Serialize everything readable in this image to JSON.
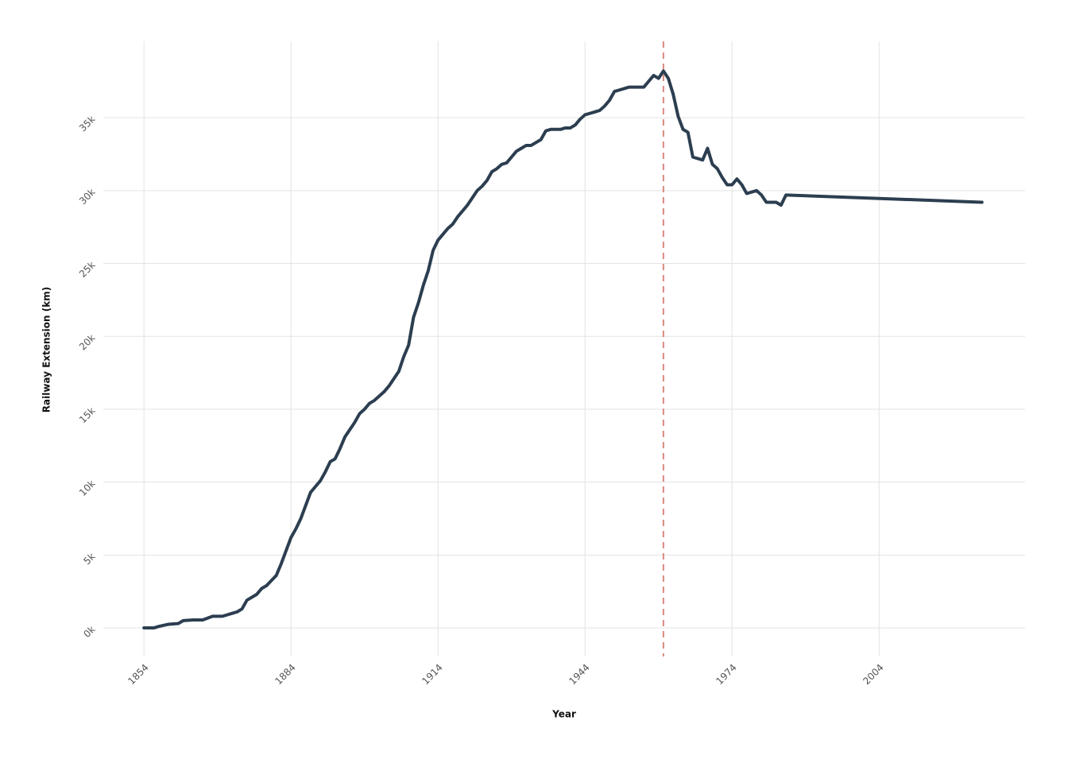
{
  "chart_data": {
    "type": "line",
    "x_label": "Year",
    "y_label": "Railway Extension (km)",
    "x": [
      1854,
      1855,
      1856,
      1857,
      1859,
      1861,
      1862,
      1864,
      1866,
      1868,
      1870,
      1872,
      1873,
      1874,
      1875,
      1877,
      1878,
      1879,
      1881,
      1882,
      1883,
      1884,
      1885,
      1886,
      1887,
      1888,
      1889,
      1890,
      1891,
      1892,
      1893,
      1894,
      1895,
      1896,
      1897,
      1898,
      1899,
      1900,
      1901,
      1902,
      1903,
      1904,
      1905,
      1906,
      1907,
      1908,
      1909,
      1910,
      1911,
      1912,
      1913,
      1914,
      1915,
      1916,
      1917,
      1918,
      1919,
      1920,
      1921,
      1922,
      1923,
      1924,
      1925,
      1926,
      1927,
      1928,
      1929,
      1930,
      1931,
      1932,
      1933,
      1934,
      1935,
      1936,
      1937,
      1938,
      1939,
      1940,
      1941,
      1942,
      1943,
      1944,
      1945,
      1946,
      1947,
      1948,
      1949,
      1950,
      1951,
      1952,
      1953,
      1954,
      1955,
      1956,
      1957,
      1958,
      1959,
      1960,
      1961,
      1962,
      1963,
      1964,
      1965,
      1966,
      1968,
      1969,
      1970,
      1971,
      1972,
      1973,
      1974,
      1975,
      1976,
      1977,
      1979,
      1980,
      1981,
      1983,
      1984,
      1985,
      2025
    ],
    "series": [
      {
        "color": "#2c3e50",
        "values": [
          0,
          0,
          0,
          100,
          250,
          300,
          500,
          550,
          550,
          800,
          800,
          1000,
          1100,
          1300,
          1900,
          2300,
          2700,
          2900,
          3600,
          4400,
          5300,
          6200,
          6800,
          7500,
          8400,
          9300,
          9700,
          10100,
          10700,
          11400,
          11600,
          12300,
          13100,
          13600,
          14100,
          14700,
          15000,
          15400,
          15600,
          15900,
          16200,
          16600,
          17100,
          17600,
          18600,
          19400,
          21300,
          22300,
          23500,
          24500,
          25900,
          26600,
          27000,
          27400,
          27700,
          28200,
          28600,
          29000,
          29500,
          30000,
          30300,
          30700,
          31300,
          31500,
          31800,
          31900,
          32300,
          32700,
          32900,
          33100,
          33100,
          33300,
          33500,
          34100,
          34200,
          34200,
          34200,
          34300,
          34300,
          34500,
          34900,
          35200,
          35300,
          35400,
          35500,
          35800,
          36200,
          36800,
          36900,
          37000,
          37100,
          37100,
          37100,
          37100,
          37500,
          37900,
          37700,
          38200,
          37700,
          36600,
          35100,
          34200,
          34000,
          32300,
          32100,
          32900,
          31800,
          31500,
          30900,
          30400,
          30400,
          30800,
          30400,
          29800,
          30000,
          29700,
          29200,
          29200,
          29000,
          29700,
          29200
        ]
      }
    ],
    "reference_line": {
      "x": 1960,
      "color": "#d98a80"
    },
    "xlim": [
      1845.7,
      2033.8
    ],
    "ylim": [
      -1960,
      40240
    ],
    "xticks": [
      1854,
      1884,
      1914,
      1944,
      1974,
      2004
    ],
    "yticks": [
      {
        "value": 0,
        "label": "0k"
      },
      {
        "value": 5000,
        "label": "5k"
      },
      {
        "value": 10000,
        "label": "10k"
      },
      {
        "value": 15000,
        "label": "15k"
      },
      {
        "value": 20000,
        "label": "20k"
      },
      {
        "value": 25000,
        "label": "25k"
      },
      {
        "value": 30000,
        "label": "30k"
      },
      {
        "value": 35000,
        "label": "35k"
      }
    ],
    "grid": true
  }
}
